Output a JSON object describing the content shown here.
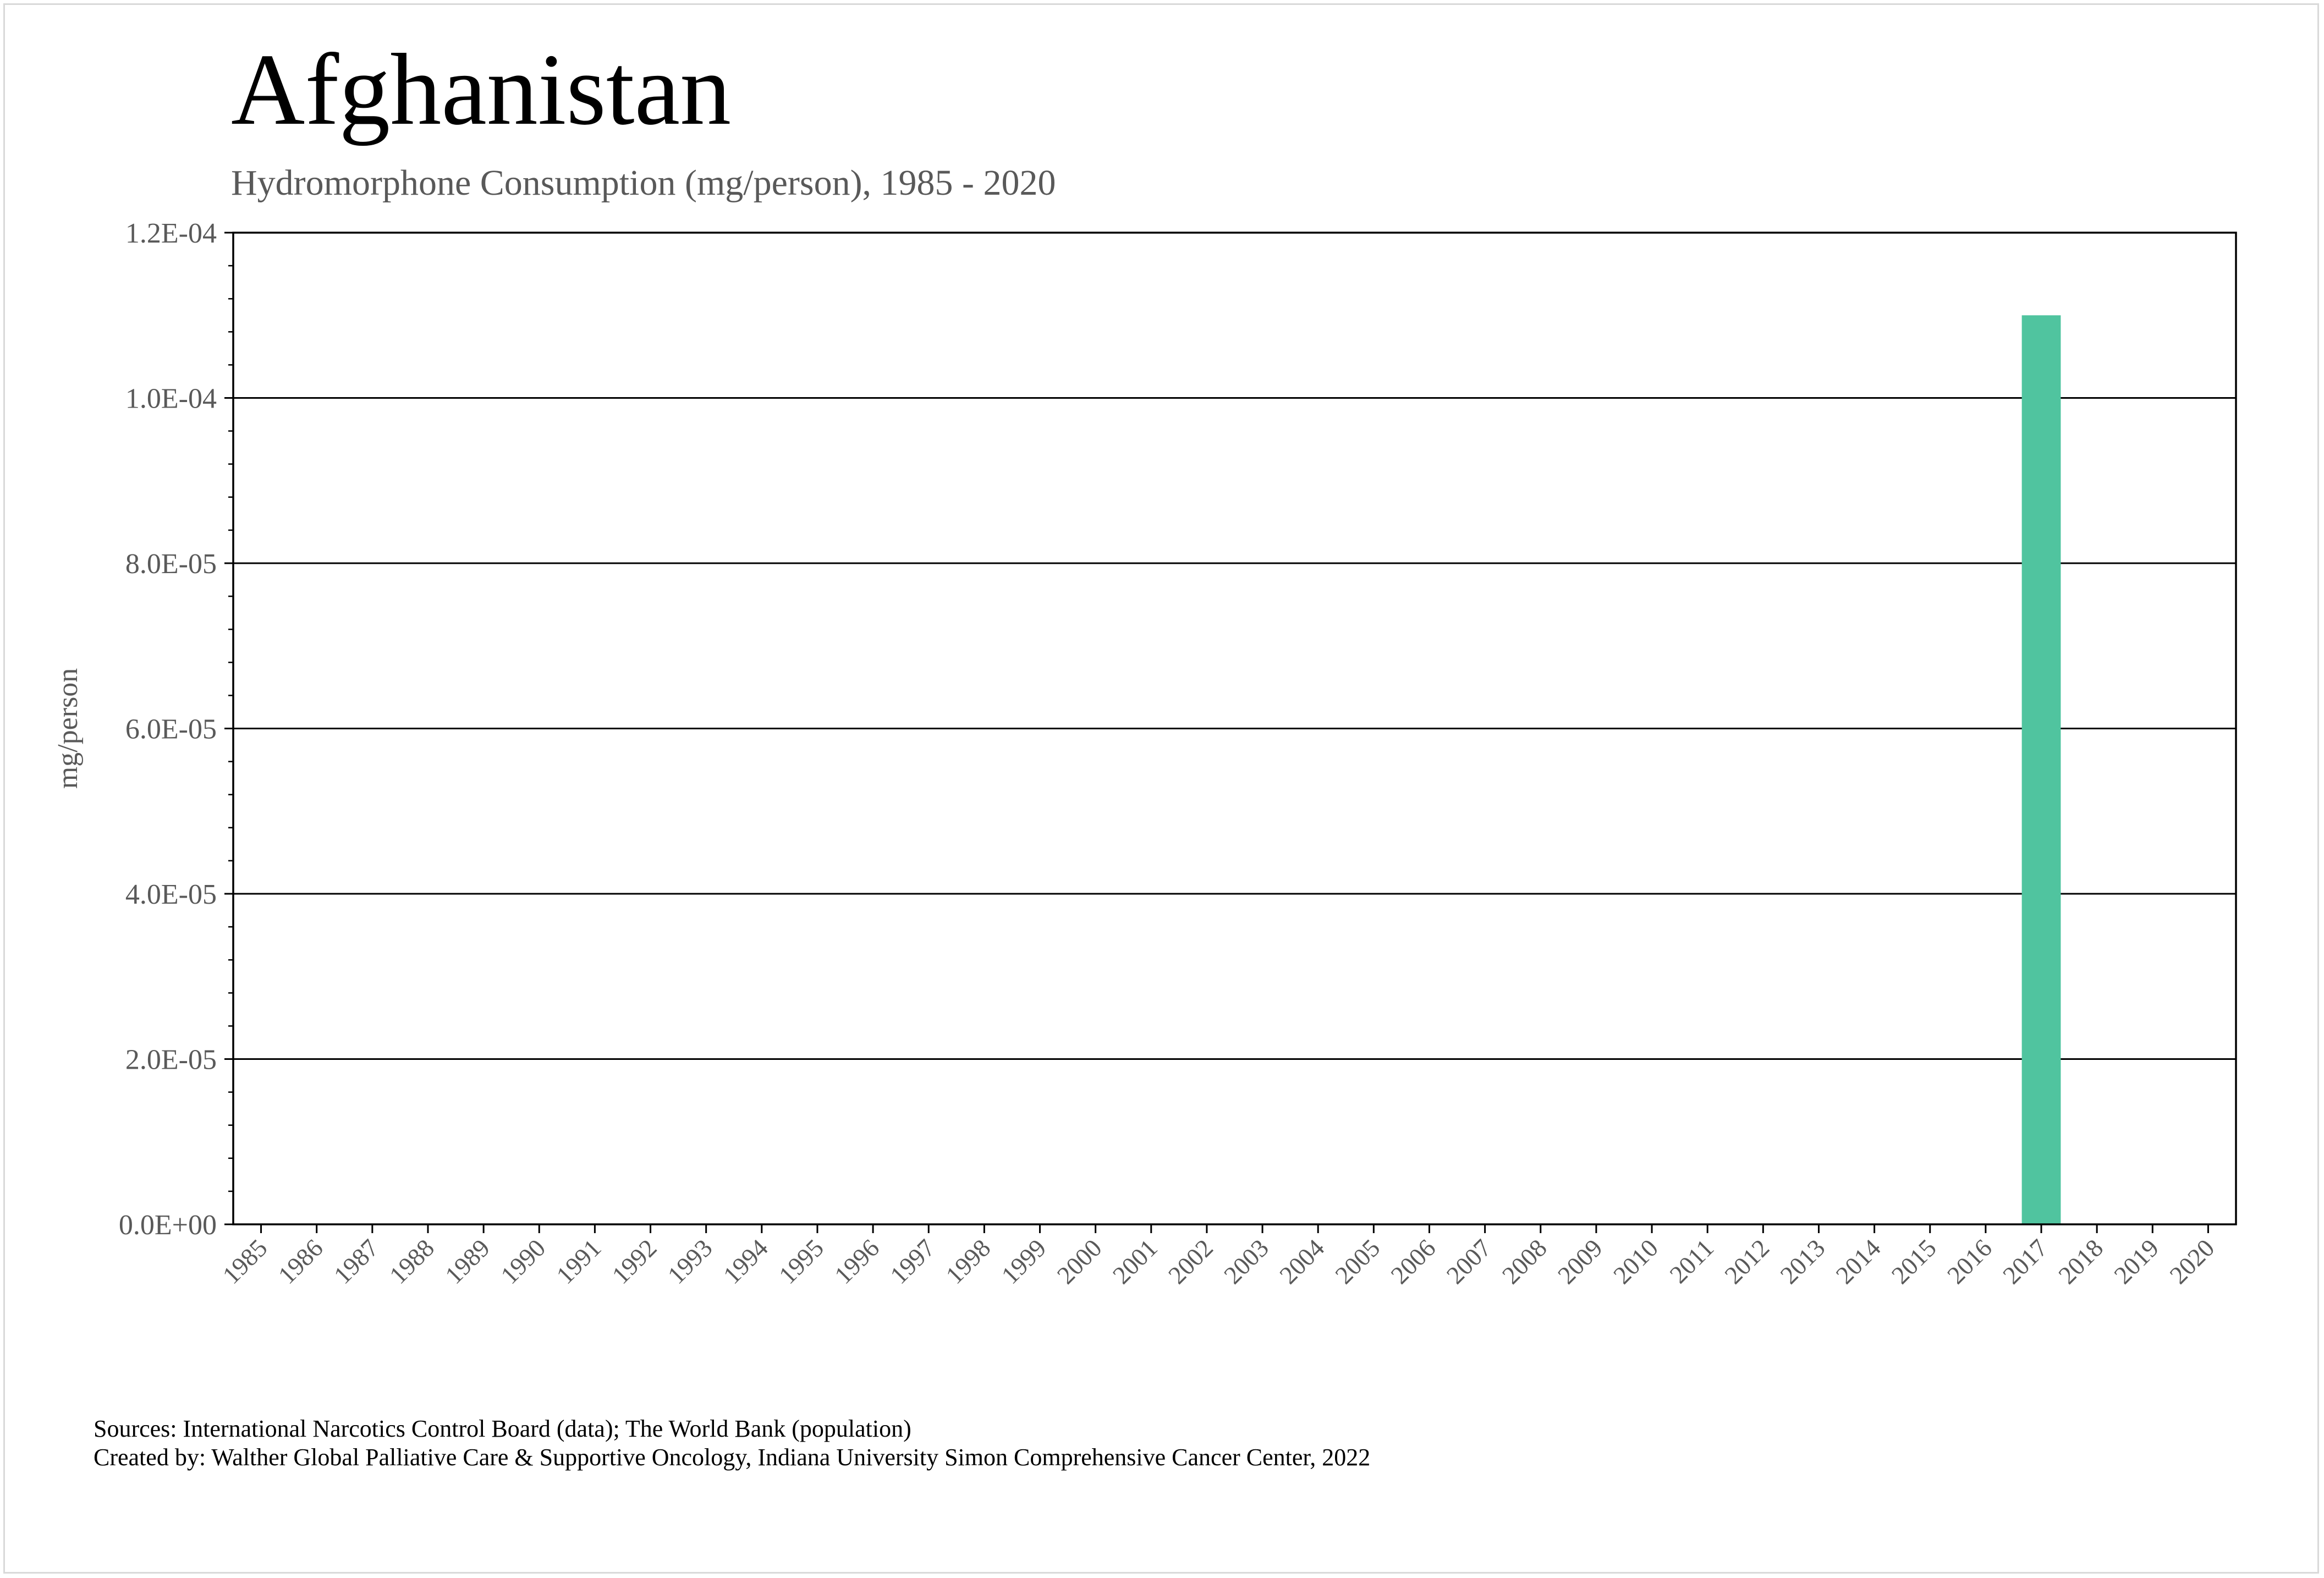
{
  "chart_data": {
    "type": "bar",
    "title": "Afghanistan",
    "subtitle": "Hydromorphone Consumption (mg/person), 1985 - 2020",
    "xlabel": "",
    "ylabel": "mg/person",
    "categories": [
      "1985",
      "1986",
      "1987",
      "1988",
      "1989",
      "1990",
      "1991",
      "1992",
      "1993",
      "1994",
      "1995",
      "1996",
      "1997",
      "1998",
      "1999",
      "2000",
      "2001",
      "2002",
      "2003",
      "2004",
      "2005",
      "2006",
      "2007",
      "2008",
      "2009",
      "2010",
      "2011",
      "2012",
      "2013",
      "2014",
      "2015",
      "2016",
      "2017",
      "2018",
      "2019",
      "2020"
    ],
    "values": [
      0,
      0,
      0,
      0,
      0,
      0,
      0,
      0,
      0,
      0,
      0,
      0,
      0,
      0,
      0,
      0,
      0,
      0,
      0,
      0,
      0,
      0,
      0,
      0,
      0,
      0,
      0,
      0,
      0,
      0,
      0,
      0,
      0.00011,
      0,
      0,
      0
    ],
    "ylim": [
      0,
      0.00012
    ],
    "yticks": [
      "0.0E+00",
      "2.0E-05",
      "4.0E-05",
      "6.0E-05",
      "8.0E-05",
      "1.0E-04",
      "1.2E-04"
    ],
    "grid": true,
    "bar_color": "#50c49f"
  },
  "footer": {
    "sources": "Sources: International Narcotics Control Board (data); The World Bank (population)",
    "created_by": "Created by: Walther Global Palliative Care & Supportive Oncology, Indiana University Simon Comprehensive Cancer Center, 2022"
  }
}
